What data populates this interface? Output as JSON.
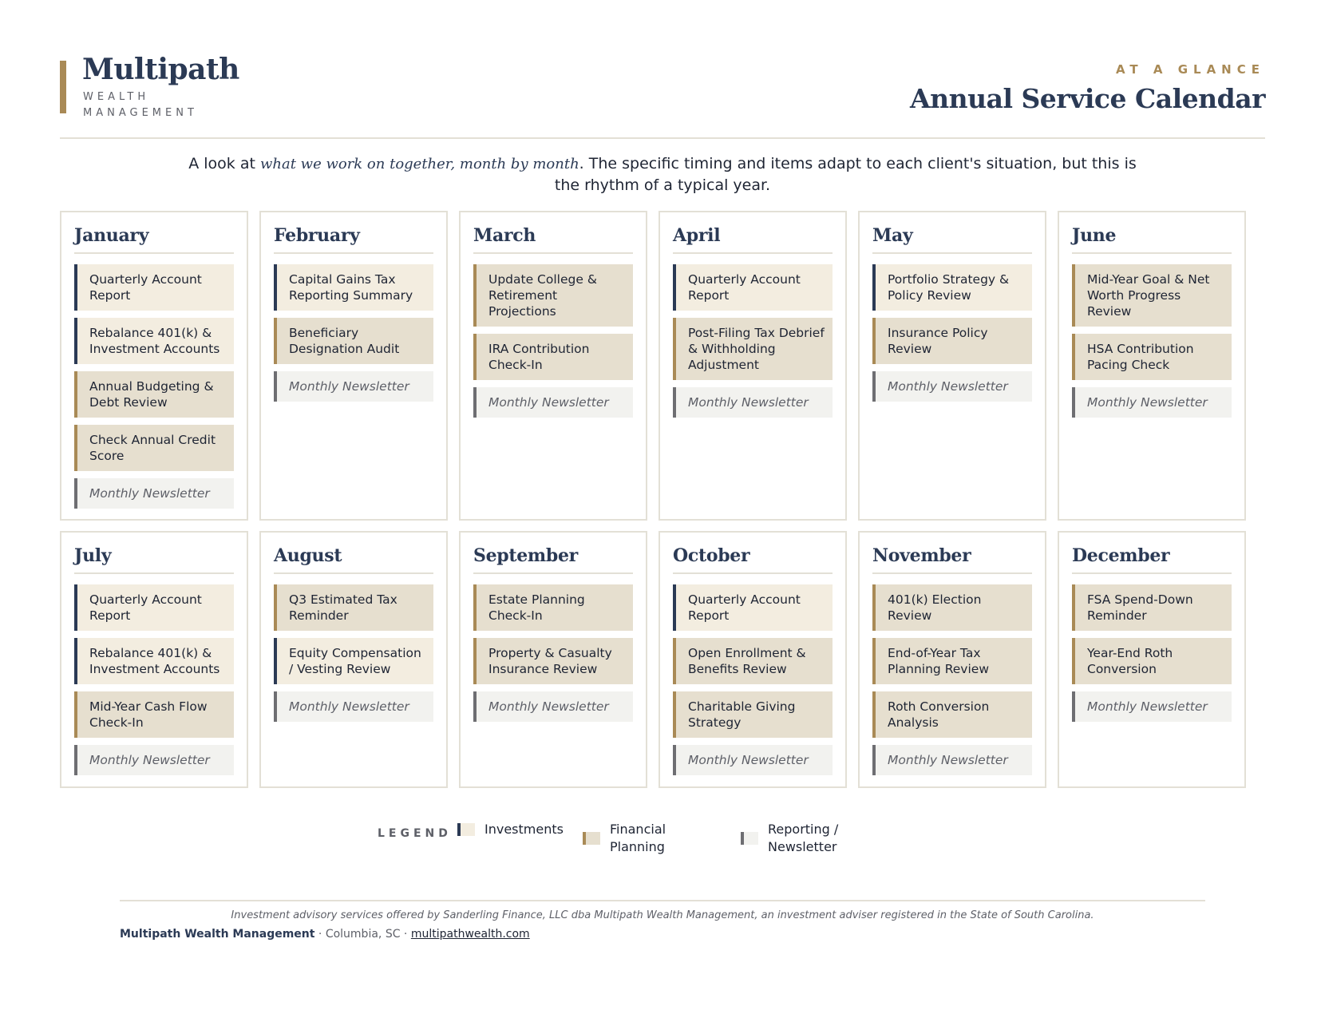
{
  "header": {
    "brand_name": "Multipath",
    "brand_sub": "WEALTH MANAGEMENT",
    "kicker": "AT A GLANCE",
    "title": "Annual Service Calendar"
  },
  "intro": {
    "before": "A look at ",
    "emphasis": "what we work on together, month by month",
    "after": ". The specific timing and items adapt to each client's situation, but this is the rhythm of a typical year."
  },
  "months": [
    {
      "name": "January",
      "items": [
        {
          "label": "Quarterly Account Report",
          "category": "investments"
        },
        {
          "label": "Rebalance 401(k) & Investment Accounts",
          "category": "investments"
        },
        {
          "label": "Annual Budgeting & Debt Review",
          "category": "planning"
        },
        {
          "label": "Check Annual Credit Score",
          "category": "planning"
        },
        {
          "label": "Monthly Newsletter",
          "category": "newsletter"
        }
      ]
    },
    {
      "name": "February",
      "items": [
        {
          "label": "Capital Gains Tax Reporting Summary",
          "category": "investments"
        },
        {
          "label": "Beneficiary Designation Audit",
          "category": "planning"
        },
        {
          "label": "Monthly Newsletter",
          "category": "newsletter"
        }
      ]
    },
    {
      "name": "March",
      "items": [
        {
          "label": "Update College & Retirement Projections",
          "category": "planning"
        },
        {
          "label": "IRA Contribution Check-In",
          "category": "planning"
        },
        {
          "label": "Monthly Newsletter",
          "category": "newsletter"
        }
      ]
    },
    {
      "name": "April",
      "items": [
        {
          "label": "Quarterly Account Report",
          "category": "investments"
        },
        {
          "label": "Post-Filing Tax Debrief & Withholding Adjustment",
          "category": "planning"
        },
        {
          "label": "Monthly Newsletter",
          "category": "newsletter"
        }
      ]
    },
    {
      "name": "May",
      "items": [
        {
          "label": "Portfolio Strategy & Policy Review",
          "category": "investments"
        },
        {
          "label": "Insurance Policy Review",
          "category": "planning"
        },
        {
          "label": "Monthly Newsletter",
          "category": "newsletter"
        }
      ]
    },
    {
      "name": "June",
      "items": [
        {
          "label": "Mid-Year Goal & Net Worth Progress Review",
          "category": "planning"
        },
        {
          "label": "HSA Contribution Pacing Check",
          "category": "planning"
        },
        {
          "label": "Monthly Newsletter",
          "category": "newsletter"
        }
      ]
    },
    {
      "name": "July",
      "items": [
        {
          "label": "Quarterly Account Report",
          "category": "investments"
        },
        {
          "label": "Rebalance 401(k) & Investment Accounts",
          "category": "investments"
        },
        {
          "label": "Mid-Year Cash Flow Check-In",
          "category": "planning"
        },
        {
          "label": "Monthly Newsletter",
          "category": "newsletter"
        }
      ]
    },
    {
      "name": "August",
      "items": [
        {
          "label": "Q3 Estimated Tax Reminder",
          "category": "planning"
        },
        {
          "label": "Equity Compensation / Vesting Review",
          "category": "investments"
        },
        {
          "label": "Monthly Newsletter",
          "category": "newsletter"
        }
      ]
    },
    {
      "name": "September",
      "items": [
        {
          "label": "Estate Planning Check-In",
          "category": "planning"
        },
        {
          "label": "Property & Casualty Insurance Review",
          "category": "planning"
        },
        {
          "label": "Monthly Newsletter",
          "category": "newsletter"
        }
      ]
    },
    {
      "name": "October",
      "items": [
        {
          "label": "Quarterly Account Report",
          "category": "investments"
        },
        {
          "label": "Open Enrollment & Benefits Review",
          "category": "planning"
        },
        {
          "label": "Charitable Giving Strategy",
          "category": "planning"
        },
        {
          "label": "Monthly Newsletter",
          "category": "newsletter"
        }
      ]
    },
    {
      "name": "November",
      "items": [
        {
          "label": "401(k) Election Review",
          "category": "planning"
        },
        {
          "label": "End-of-Year Tax Planning Review",
          "category": "planning"
        },
        {
          "label": "Roth Conversion Analysis",
          "category": "planning"
        },
        {
          "label": "Monthly Newsletter",
          "category": "newsletter"
        }
      ]
    },
    {
      "name": "December",
      "items": [
        {
          "label": "FSA Spend-Down Reminder",
          "category": "planning"
        },
        {
          "label": "Year-End Roth Conversion",
          "category": "planning"
        },
        {
          "label": "Monthly Newsletter",
          "category": "newsletter"
        }
      ]
    }
  ],
  "legend": {
    "title": "LEGEND",
    "items": [
      {
        "label": "Investments",
        "category": "investments",
        "bar_color": "#2b3a55",
        "fill_color": "#f3ede0"
      },
      {
        "label": "Financial Planning",
        "category": "planning",
        "bar_color": "#a98a56",
        "fill_color": "#e6dfcf"
      },
      {
        "label": "Reporting / Newsletter",
        "category": "newsletter",
        "bar_color": "#6e6e72",
        "fill_color": "#f2f2ef"
      }
    ]
  },
  "footer": {
    "disclaimer": "Investment advisory services offered by Sanderling Finance, LLC dba Multipath Wealth Management, an investment adviser registered in the State of South Carolina.",
    "firm": "Multipath Wealth Management",
    "location": " · Columbia, SC · ",
    "website": "multipathwealth.com"
  },
  "colors": {
    "navy": "#2b3a55",
    "gold": "#a98a56",
    "gray": "#6e6e72",
    "border": "#e3e0d6"
  }
}
